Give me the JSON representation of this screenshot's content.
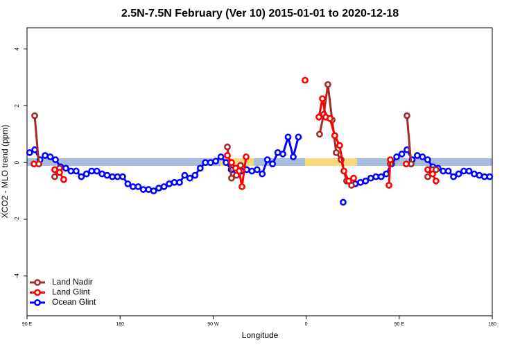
{
  "chart_data": {
    "type": "line",
    "title": "2.5N-7.5N February (Ver 10)   2015-01-01 to 2020-12-18",
    "x_label": "Longitude",
    "y_label": "XCO2 - MLO trend (ppm)",
    "xlim": [
      90,
      540
    ],
    "ylim": [
      -5.4,
      4.75
    ],
    "xticks": [
      {
        "value": 90,
        "label": "90 E"
      },
      {
        "value": 180,
        "label": "180"
      },
      {
        "value": 270,
        "label": "90 W"
      },
      {
        "value": 360,
        "label": "0"
      },
      {
        "value": 450,
        "label": "90 E"
      },
      {
        "value": 540,
        "label": "180"
      }
    ],
    "yticks": [
      -4,
      -2,
      0,
      2,
      4
    ],
    "legend": "bottom-left",
    "series": [
      {
        "name": "Land Nadir",
        "color": "#a52a2a",
        "x": [
          97.4,
          101.4,
          null,
          116.8,
          121.5,
          null,
          283.8,
          287.8,
          292.5,
          296.5,
          null,
          373.0,
          377.0,
          381.0,
          385.1,
          389.1,
          393.8,
          399.1,
          403.8,
          null,
          441.4,
          null,
          457.5,
          461.5,
          null,
          477.6,
          482.3,
          485.6
        ],
        "values": [
          1.65,
          -0.05,
          null,
          -0.5,
          -0.2,
          null,
          0.55,
          -0.55,
          -0.45,
          -0.1,
          null,
          1.0,
          1.7,
          2.75,
          1.5,
          0.35,
          0.1,
          -0.65,
          -0.8,
          null,
          -0.05,
          null,
          1.65,
          -0.05,
          null,
          -0.5,
          -0.25,
          -0.25
        ]
      },
      {
        "name": "Land Glint",
        "color": "#ff0000",
        "x": [
          96.7,
          null,
          116.8,
          121.5,
          125.5,
          null,
          283.8,
          287.8,
          291.8,
          295.2,
          297.9,
          301.9,
          null,
          358.9,
          null,
          372.3,
          375.7,
          379.0,
          383.0,
          387.7,
          392.4,
          396.5,
          401.2,
          405.9,
          null,
          440.1,
          441.4,
          null,
          456.8,
          null,
          477.6,
          482.3,
          485.6
        ],
        "values": [
          -0.05,
          null,
          -0.25,
          -0.35,
          -0.6,
          null,
          0.25,
          0.0,
          -0.2,
          -0.3,
          -0.85,
          0.2,
          null,
          2.9,
          null,
          1.6,
          2.25,
          1.6,
          1.55,
          0.95,
          0.6,
          -0.3,
          -0.65,
          -0.55,
          null,
          -0.8,
          0.1,
          null,
          -0.05,
          null,
          -0.25,
          -0.4,
          -0.65
        ]
      },
      {
        "name": "Ocean Glint",
        "color": "#0000ff",
        "x": [
          92.5,
          97.5,
          102.5,
          107.5,
          112.5,
          117.5,
          122.5,
          127.5,
          132.5,
          137.5,
          142.5,
          147.5,
          152.5,
          157.5,
          162.5,
          167.5,
          172.5,
          177.5,
          182.5,
          187.5,
          192.5,
          197.5,
          202.5,
          207.5,
          212.5,
          217.5,
          222.5,
          227.5,
          232.5,
          237.5,
          242.5,
          247.5,
          252.5,
          257.5,
          262.5,
          267.5,
          272.5,
          277.5,
          282.5,
          287.5,
          292.5,
          297.5,
          302.5,
          307.5,
          312.5,
          317.5,
          322.5,
          327.5,
          332.5,
          337.5,
          342.5,
          347.5,
          352.5,
          null,
          395.8,
          null,
          407.5,
          412.5,
          417.5,
          422.5,
          427.5,
          432.5,
          437.5,
          442.5,
          447.5,
          452.5,
          457.5,
          462.5,
          467.5,
          472.5,
          477.5,
          482.5,
          487.5,
          492.5,
          497.5,
          502.5,
          507.5,
          512.5,
          517.5,
          522.5,
          527.5,
          532.5,
          537.5
        ],
        "values": [
          0.35,
          0.45,
          0.1,
          0.25,
          0.2,
          0.1,
          -0.15,
          -0.2,
          -0.3,
          -0.3,
          -0.5,
          -0.4,
          -0.3,
          -0.3,
          -0.4,
          -0.45,
          -0.5,
          -0.5,
          -0.5,
          -0.75,
          -0.85,
          -0.85,
          -0.95,
          -0.95,
          -1.0,
          -0.9,
          -0.85,
          -0.75,
          -0.7,
          -0.7,
          -0.45,
          -0.55,
          -0.45,
          -0.2,
          0.0,
          0.0,
          0.05,
          0.2,
          0.0,
          -0.25,
          -0.3,
          -0.3,
          -0.25,
          -0.3,
          -0.25,
          -0.4,
          0.1,
          -0.05,
          0.35,
          0.3,
          0.9,
          0.2,
          0.9,
          null,
          -1.4,
          null,
          -0.75,
          -0.7,
          -0.65,
          -0.55,
          -0.5,
          -0.5,
          -0.4,
          -0.05,
          0.2,
          0.3,
          0.45,
          0.1,
          0.25,
          0.2,
          0.1,
          -0.15,
          -0.2,
          -0.3,
          -0.3,
          -0.5,
          -0.4,
          -0.3,
          -0.3,
          -0.4,
          -0.45,
          -0.5,
          -0.5
        ]
      }
    ]
  }
}
